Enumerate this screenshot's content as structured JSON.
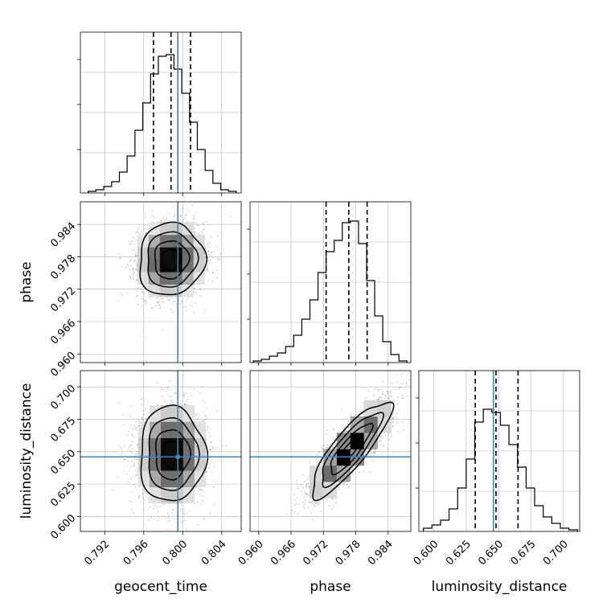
{
  "chart_data": {
    "type": "corner",
    "parameters": [
      "geocent_time",
      "phase",
      "luminosity_distance"
    ],
    "truth": {
      "geocent_time": 0.7995,
      "phase": null,
      "luminosity_distance": 0.646
    },
    "grid": true,
    "axes": {
      "geocent_time": {
        "range": [
          0.7895,
          0.806
        ],
        "ticks": [
          0.792,
          0.796,
          0.8,
          0.804
        ],
        "tick_labels": [
          "0.792",
          "0.796",
          "0.800",
          "0.804"
        ]
      },
      "phase": {
        "range": [
          0.9584,
          0.9882
        ],
        "ticks": [
          0.96,
          0.966,
          0.972,
          0.978,
          0.984
        ],
        "tick_labels": [
          "0.960",
          "0.966",
          "0.972",
          "0.978",
          "0.984"
        ]
      },
      "luminosity_distance": {
        "range": [
          0.5885,
          0.7125
        ],
        "ticks": [
          0.6,
          0.625,
          0.65,
          0.675,
          0.7
        ],
        "tick_labels": [
          "0.600",
          "0.625",
          "0.650",
          "0.675",
          "0.700"
        ]
      }
    },
    "marginals": [
      {
        "parameter": "geocent_time",
        "quantiles": [
          0.797,
          0.7988,
          0.8008
        ],
        "bin_edges": [
          0.7903,
          0.7911,
          0.7919,
          0.7927,
          0.7935,
          0.7943,
          0.7951,
          0.7959,
          0.7967,
          0.7975,
          0.7983,
          0.7991,
          0.7999,
          0.8007,
          0.8015,
          0.8023,
          0.8031,
          0.8039,
          0.8047,
          0.8055
        ],
        "counts": [
          0.01,
          0.02,
          0.04,
          0.07,
          0.13,
          0.23,
          0.39,
          0.56,
          0.74,
          0.85,
          0.86,
          0.77,
          0.62,
          0.44,
          0.27,
          0.14,
          0.06,
          0.02,
          0.01
        ]
      },
      {
        "parameter": "phase",
        "quantiles": [
          0.9725,
          0.9767,
          0.9801
        ],
        "bin_edges": [
          0.959,
          0.9605,
          0.962,
          0.9635,
          0.965,
          0.9665,
          0.968,
          0.9695,
          0.971,
          0.9725,
          0.974,
          0.9755,
          0.977,
          0.9785,
          0.98,
          0.9815,
          0.983,
          0.9845,
          0.986,
          0.9875
        ],
        "counts": [
          0.01,
          0.02,
          0.04,
          0.06,
          0.1,
          0.17,
          0.27,
          0.39,
          0.56,
          0.69,
          0.76,
          0.87,
          0.88,
          0.74,
          0.51,
          0.29,
          0.13,
          0.05,
          0.01
        ]
      },
      {
        "parameter": "luminosity_distance",
        "quantiles": [
          0.632,
          0.648,
          0.665
        ],
        "bin_edges": [
          0.592,
          0.5986,
          0.6052,
          0.6118,
          0.6184,
          0.625,
          0.6316,
          0.6382,
          0.6448,
          0.6514,
          0.658,
          0.6646,
          0.6712,
          0.6778,
          0.6844,
          0.691,
          0.6976,
          0.7042,
          0.7108
        ],
        "counts": [
          0.02,
          0.04,
          0.07,
          0.14,
          0.27,
          0.45,
          0.68,
          0.76,
          0.74,
          0.66,
          0.54,
          0.4,
          0.27,
          0.16,
          0.09,
          0.05,
          0.02,
          0.01
        ]
      }
    ],
    "joints": [
      {
        "x": "geocent_time",
        "y": "phase",
        "center": [
          0.7988,
          0.9775
        ],
        "spread": [
          0.0016,
          0.0032
        ],
        "correlation": 0.05,
        "contour_sigmas": [
          0.6,
          1.1,
          1.6,
          2.1
        ],
        "samples": 2600
      },
      {
        "x": "geocent_time",
        "y": "luminosity_distance",
        "center": [
          0.7989,
          0.648
        ],
        "spread": [
          0.0016,
          0.0175
        ],
        "correlation": 0.0,
        "contour_sigmas": [
          0.6,
          1.1,
          1.6,
          2.1
        ],
        "samples": 2600
      },
      {
        "x": "phase",
        "y": "luminosity_distance",
        "center": [
          0.977,
          0.652
        ],
        "spread": [
          0.0035,
          0.0175
        ],
        "correlation": 0.85,
        "contour_sigmas": [
          0.6,
          1.1,
          1.6,
          2.1
        ],
        "samples": 2600
      }
    ],
    "colors": {
      "truth": "#4682b4",
      "histogram": "#000000",
      "grid": "#b0b0b0",
      "samples": "#555555"
    }
  }
}
